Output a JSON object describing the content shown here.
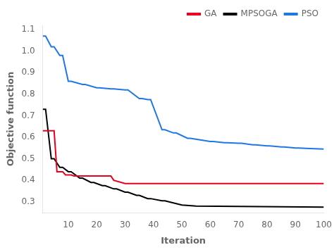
{
  "chart_data": {
    "type": "line",
    "xlabel": "Iteration",
    "ylabel": "Objective function",
    "xlim": [
      1,
      100
    ],
    "ylim": [
      0.25,
      1.12
    ],
    "xticks": [
      10,
      20,
      30,
      40,
      50,
      60,
      70,
      80,
      90,
      100
    ],
    "yticks": [
      0.3,
      0.4,
      0.5,
      0.6,
      0.7,
      0.8,
      0.9,
      {
        "value": 1,
        "label": "1.0"
      },
      1.1
    ],
    "grid": false,
    "legend": "upper right",
    "series": [
      {
        "name": "GA",
        "color": "#e8001c",
        "x": [
          1,
          2,
          5,
          6,
          8,
          9,
          11,
          12,
          25,
          26,
          30,
          100
        ],
        "values": [
          0.63,
          0.63,
          0.63,
          0.44,
          0.44,
          0.425,
          0.425,
          0.42,
          0.42,
          0.4,
          0.385,
          0.385
        ]
      },
      {
        "name": "MPSOGA",
        "color": "#000000",
        "x": [
          1,
          2,
          4,
          5,
          7,
          8,
          10,
          11,
          14,
          15,
          18,
          19,
          22,
          23,
          26,
          27,
          30,
          31,
          34,
          35,
          38,
          39,
          43,
          44,
          50,
          55,
          100
        ],
        "values": [
          0.73,
          0.73,
          0.5,
          0.5,
          0.46,
          0.46,
          0.44,
          0.44,
          0.41,
          0.41,
          0.39,
          0.39,
          0.375,
          0.375,
          0.36,
          0.36,
          0.345,
          0.345,
          0.33,
          0.33,
          0.315,
          0.315,
          0.305,
          0.305,
          0.285,
          0.28,
          0.275
        ]
      },
      {
        "name": "PSO",
        "color": "#1f77e6",
        "x": [
          1,
          2,
          4,
          5,
          7,
          8,
          10,
          11,
          15,
          16,
          20,
          21,
          25,
          26,
          30,
          31,
          35,
          36,
          38,
          39,
          43,
          44,
          47,
          48,
          52,
          53,
          60,
          61,
          65,
          66,
          70,
          71,
          75,
          76,
          80,
          81,
          85,
          86,
          90,
          91,
          95,
          100
        ],
        "values": [
          1.07,
          1.07,
          1.02,
          1.02,
          0.98,
          0.98,
          0.86,
          0.86,
          0.845,
          0.845,
          0.83,
          0.83,
          0.825,
          0.825,
          0.82,
          0.82,
          0.78,
          0.78,
          0.775,
          0.775,
          0.635,
          0.635,
          0.62,
          0.62,
          0.595,
          0.595,
          0.58,
          0.58,
          0.575,
          0.575,
          0.572,
          0.572,
          0.565,
          0.565,
          0.56,
          0.56,
          0.555,
          0.555,
          0.55,
          0.55,
          0.548,
          0.545
        ]
      }
    ]
  }
}
